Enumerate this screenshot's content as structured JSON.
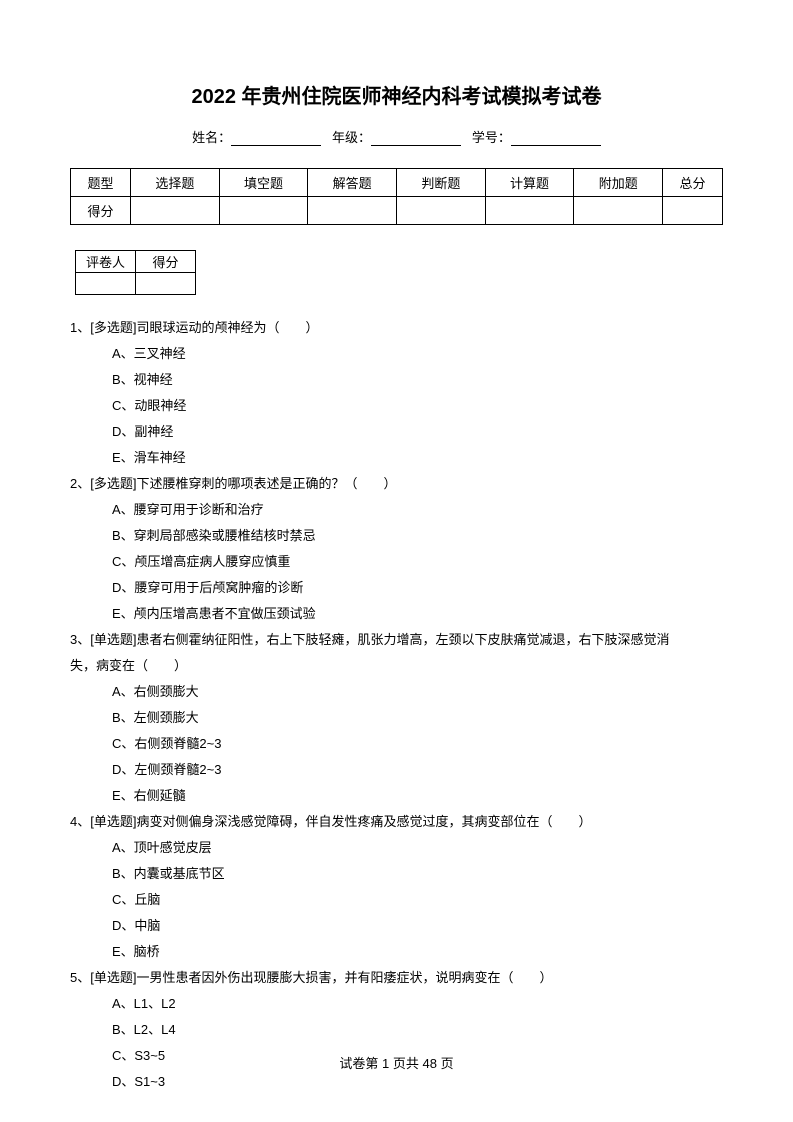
{
  "title": "2022 年贵州住院医师神经内科考试模拟考试卷",
  "info": {
    "name_label": "姓名：",
    "grade_label": "年级：",
    "id_label": "学号："
  },
  "type_table": {
    "row1": [
      "题型",
      "选择题",
      "填空题",
      "解答题",
      "判断题",
      "计算题",
      "附加题",
      "总分"
    ],
    "row2_label": "得分"
  },
  "grader_table": {
    "col1": "评卷人",
    "col2": "得分"
  },
  "questions": [
    {
      "stem": "1、[多选题]司眼球运动的颅神经为（　　）",
      "options": [
        "A、三叉神经",
        "B、视神经",
        "C、动眼神经",
        "D、副神经",
        "E、滑车神经"
      ]
    },
    {
      "stem": "2、[多选题]下述腰椎穿刺的哪项表述是正确的？（　　）",
      "options": [
        "A、腰穿可用于诊断和治疗",
        "B、穿刺局部感染或腰椎结核时禁忌",
        "C、颅压增高症病人腰穿应慎重",
        "D、腰穿可用于后颅窝肿瘤的诊断",
        "E、颅内压增高患者不宜做压颈试验"
      ]
    },
    {
      "stem": "3、[单选题]患者右侧霍纳征阳性，右上下肢轻瘫，肌张力增高，左颈以下皮肤痛觉减退，右下肢深感觉消",
      "stem2": "失，病变在（　　）",
      "options": [
        "A、右侧颈膨大",
        "B、左侧颈膨大",
        "C、右侧颈脊髓2~3",
        "D、左侧颈脊髓2~3",
        "E、右侧延髓"
      ]
    },
    {
      "stem": "4、[单选题]病变对侧偏身深浅感觉障碍，伴自发性疼痛及感觉过度，其病变部位在（　　）",
      "options": [
        "A、顶叶感觉皮层",
        "B、内囊或基底节区",
        "C、丘脑",
        "D、中脑",
        "E、脑桥"
      ]
    },
    {
      "stem": "5、[单选题]一男性患者因外伤出现腰膨大损害，并有阳痿症状，说明病变在（　　）",
      "options": [
        "A、L1、L2",
        "B、L2、L4",
        "C、S3~5",
        "D、S1~3"
      ]
    }
  ],
  "footer": {
    "prefix": "试卷第 ",
    "page": "1",
    "mid": " 页共 ",
    "total": "48",
    "suffix": " 页"
  }
}
